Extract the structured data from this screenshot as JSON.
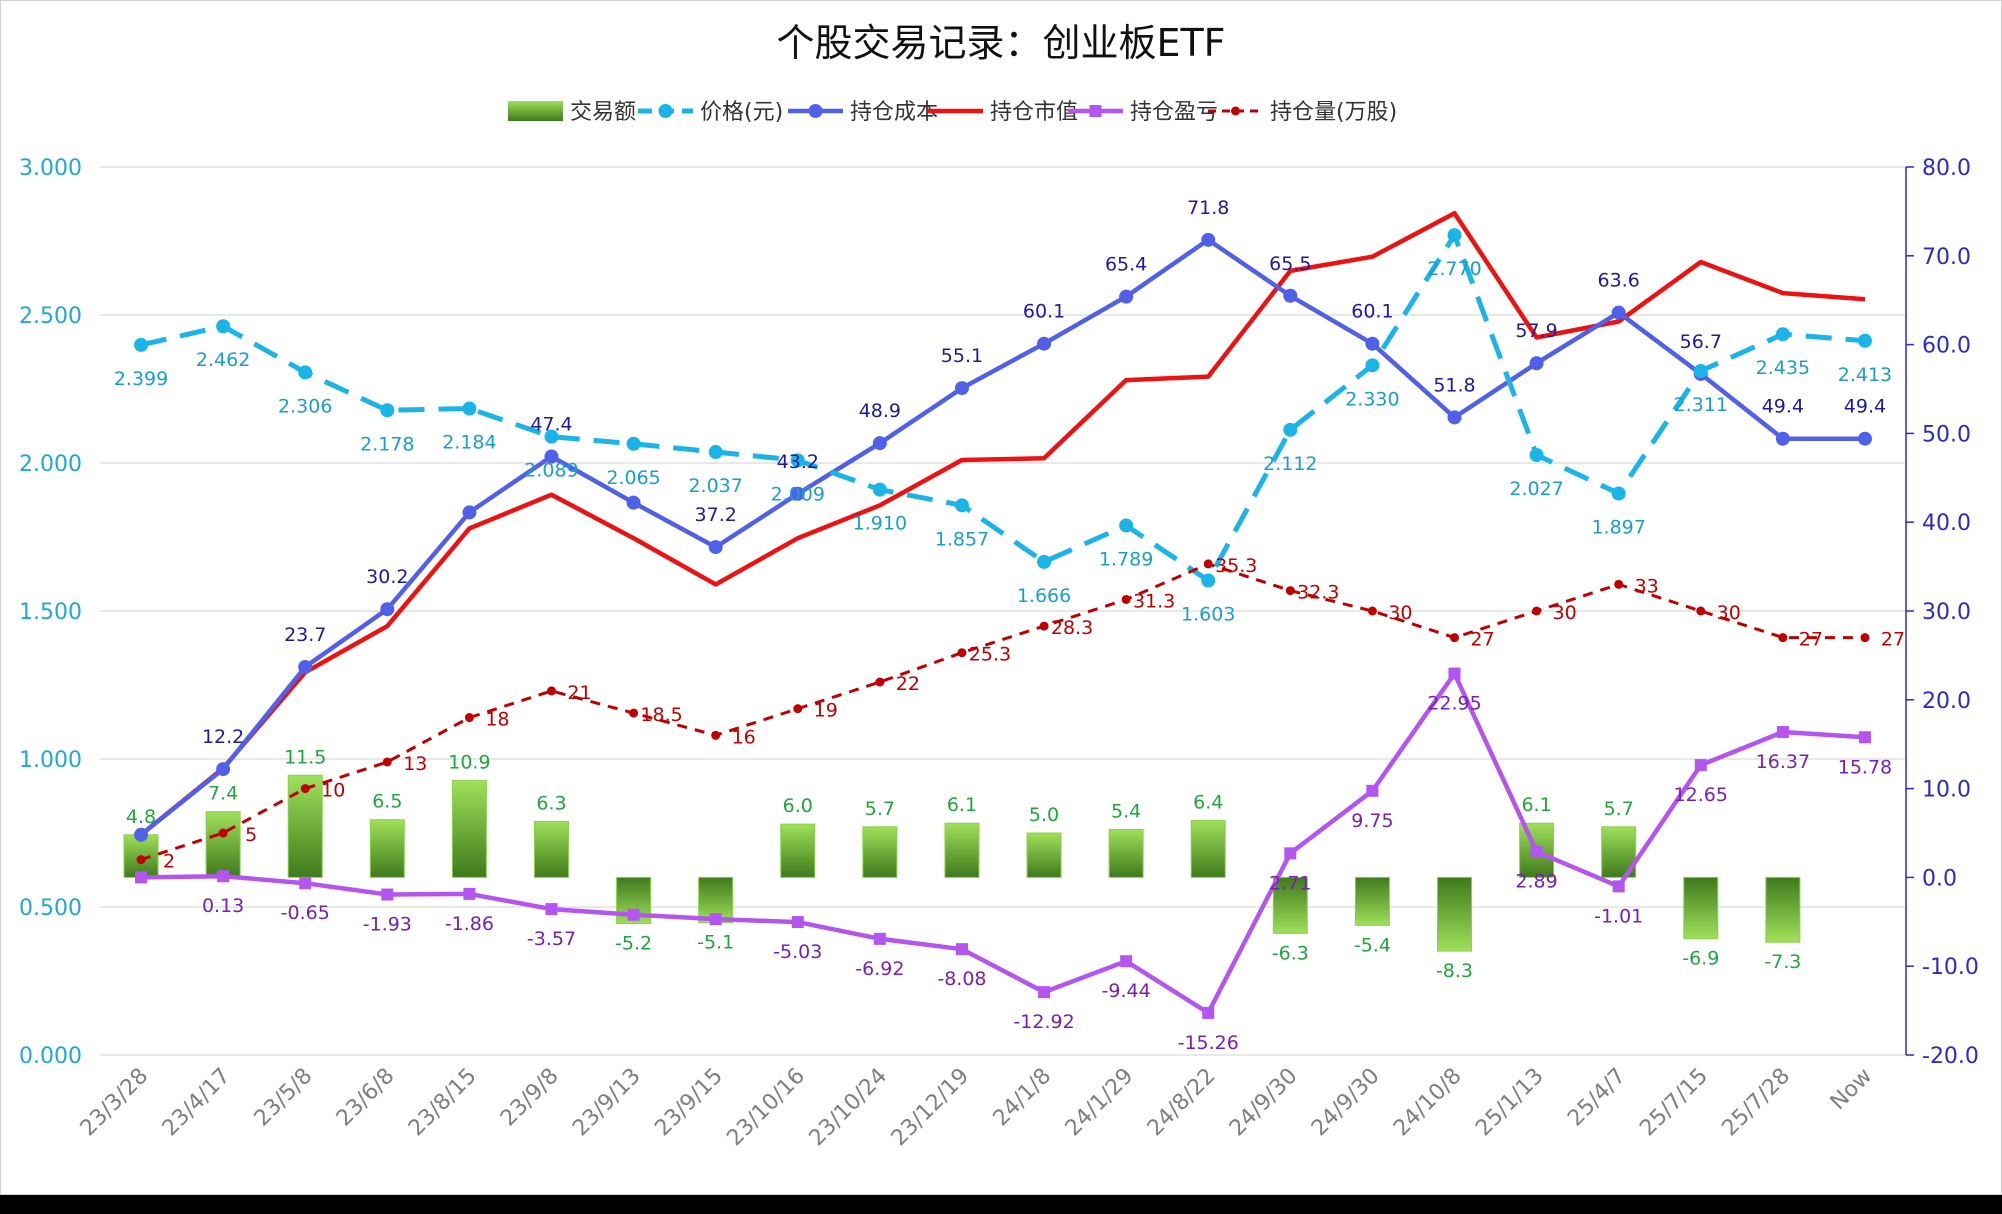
{
  "chart_data": {
    "type": "combo",
    "title": "个股交易记录：创业板ETF",
    "categories": [
      "23/3/28",
      "23/4/17",
      "23/5/8",
      "23/6/8",
      "23/8/15",
      "23/9/8",
      "23/9/13",
      "23/9/15",
      "23/10/16",
      "23/10/24",
      "23/12/19",
      "24/1/8",
      "24/1/29",
      "24/8/22",
      "24/9/30",
      "24/9/30",
      "24/10/8",
      "25/1/13",
      "25/4/7",
      "25/7/15",
      "25/7/28",
      "Now"
    ],
    "left_axis": {
      "min": 0,
      "max": 3,
      "ticks": [
        "0.000",
        "0.500",
        "1.000",
        "1.500",
        "2.000",
        "2.500",
        "3.000"
      ]
    },
    "right_axis": {
      "min": -20,
      "max": 80,
      "ticks": [
        "-20.0",
        "-10.0",
        "0.0",
        "10.0",
        "20.0",
        "30.0",
        "40.0",
        "50.0",
        "60.0",
        "70.0",
        "80.0"
      ]
    },
    "legend": {
      "position": "top",
      "items": [
        "交易额",
        "价格(元)",
        "持仓成本",
        "持仓市值",
        "持仓盈亏",
        "持仓量(万股)"
      ]
    },
    "series": [
      {
        "name": "交易额",
        "type": "bar",
        "axis": "right",
        "color": "#7ccd3f",
        "values": [
          4.8,
          7.4,
          11.5,
          6.5,
          10.9,
          6.3,
          -5.2,
          -5.1,
          6.0,
          5.7,
          6.1,
          5.0,
          5.4,
          6.4,
          -6.3,
          -5.4,
          -8.3,
          6.1,
          5.7,
          -6.9,
          -7.3,
          null
        ],
        "labels": [
          "4.8",
          "7.4",
          "11.5",
          "6.5",
          "10.9",
          "6.3",
          "-5.2",
          "-5.1",
          "6.0",
          "5.7",
          "6.1",
          "5.0",
          "5.4",
          "6.4",
          "-6.3",
          "-5.4",
          "-8.3",
          "6.1",
          "5.7",
          "-6.9",
          "-7.3",
          ""
        ]
      },
      {
        "name": "价格(元)",
        "type": "line",
        "axis": "left",
        "color": "#1ab4e8",
        "dash": true,
        "values": [
          2.399,
          2.462,
          2.306,
          2.178,
          2.184,
          2.089,
          2.065,
          2.037,
          2.009,
          1.91,
          1.857,
          1.666,
          1.789,
          1.603,
          2.112,
          2.33,
          2.77,
          2.027,
          1.897,
          2.311,
          2.435,
          2.413
        ],
        "labels": [
          "2.399",
          "2.462",
          "2.306",
          "2.178",
          "2.184",
          "2.089",
          "2.065",
          "2.037",
          "2.009",
          "1.910",
          "1.857",
          "1.666",
          "1.789",
          "1.603",
          "2.112",
          "2.330",
          "2.770",
          "2.027",
          "1.897",
          "2.311",
          "2.435",
          "2.413"
        ]
      },
      {
        "name": "持仓成本",
        "type": "line",
        "axis": "right",
        "color": "#5060e8",
        "values": [
          4.8,
          12.2,
          23.7,
          30.2,
          41.1,
          47.4,
          42.2,
          37.2,
          43.2,
          48.9,
          55.1,
          60.1,
          65.4,
          71.8,
          65.5,
          60.1,
          51.8,
          57.9,
          63.6,
          56.7,
          49.4,
          49.4
        ],
        "labels": [
          "",
          "12.2",
          "23.7",
          "30.2",
          "",
          "47.4",
          "",
          "37.2",
          "43.2",
          "48.9",
          "55.1",
          "60.1",
          "65.4",
          "71.8",
          "65.5",
          "60.1",
          "51.8",
          "57.9",
          "63.6",
          "56.7",
          "49.4",
          "49.4"
        ]
      },
      {
        "name": "持仓市值",
        "type": "line",
        "axis": "right",
        "color": "#ee1111",
        "values": [
          4.8,
          12.3,
          23.1,
          28.3,
          39.3,
          43.1,
          38.2,
          33.0,
          38.2,
          41.9,
          47.0,
          47.2,
          56.0,
          56.4,
          68.3,
          69.9,
          74.8,
          60.8,
          62.6,
          69.3,
          65.8,
          65.1
        ],
        "labels": []
      },
      {
        "name": "持仓盈亏",
        "type": "line",
        "axis": "right",
        "color": "#b455f0",
        "values": [
          0,
          0.13,
          -0.65,
          -1.93,
          -1.86,
          -3.57,
          -4.2,
          -4.7,
          -5.03,
          -6.92,
          -8.08,
          -12.92,
          -9.44,
          -15.26,
          2.71,
          9.75,
          22.95,
          2.89,
          -1.01,
          12.65,
          16.37,
          15.78
        ],
        "labels": [
          "",
          "0.13",
          "-0.65",
          "-1.93",
          "-1.86",
          "-3.57",
          "",
          "",
          "-5.03",
          "-6.92",
          "-8.08",
          "-12.92",
          "-9.44",
          "-15.26",
          "2.71",
          "9.75",
          "22.95",
          "2.89",
          "-1.01",
          "12.65",
          "16.37",
          "15.78"
        ]
      },
      {
        "name": "持仓量(万股)",
        "type": "line",
        "axis": "right",
        "color": "#c00000",
        "dash": true,
        "values": [
          2,
          5,
          10,
          13,
          18,
          21,
          18.5,
          16,
          19,
          22,
          25.3,
          28.3,
          31.3,
          35.3,
          32.3,
          30,
          27,
          30,
          33,
          30,
          27,
          27
        ],
        "labels": [
          "2",
          "5",
          "10",
          "13",
          "18",
          "21",
          "18.5",
          "16",
          "19",
          "22",
          "25.3",
          "28.3",
          "31.3",
          "35.3",
          "32.3",
          "30",
          "27",
          "30",
          "33",
          "30",
          "27",
          "27"
        ]
      }
    ]
  }
}
